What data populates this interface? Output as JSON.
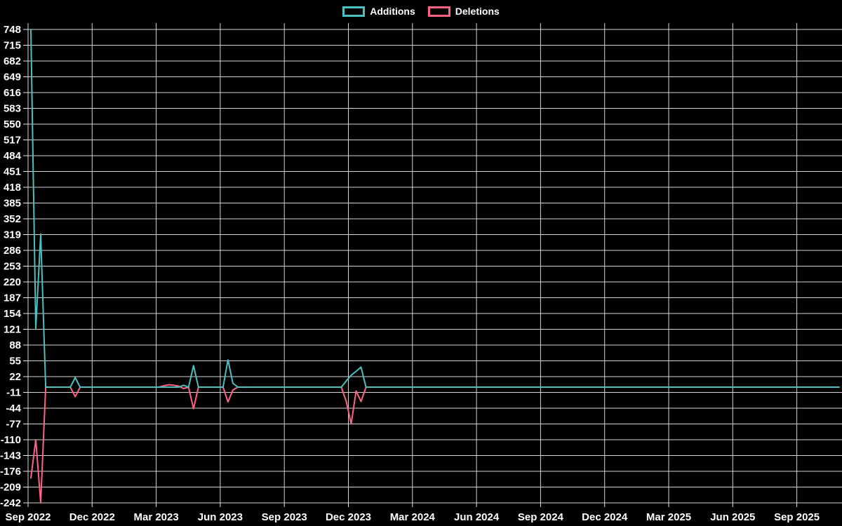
{
  "legend": {
    "items": [
      {
        "label": "Additions",
        "color": "#4bc0c0"
      },
      {
        "label": "Deletions",
        "color": "#ff6384"
      }
    ]
  },
  "colors": {
    "background": "#000000",
    "grid": "#e8e8e8",
    "text": "#ffffff",
    "additions": "#4bc0c0",
    "deletions": "#ff6384"
  },
  "chart_data": {
    "type": "line",
    "title": "",
    "xlabel": "",
    "ylabel": "",
    "x_unit": "week",
    "weeks": 165,
    "grid": true,
    "legend_position": "top-center",
    "y_min": -242,
    "y_max": 748,
    "y_tick_step": 33,
    "y_ticks": [
      748,
      715,
      682,
      649,
      616,
      583,
      550,
      517,
      484,
      451,
      418,
      385,
      352,
      319,
      286,
      253,
      220,
      187,
      154,
      121,
      88,
      55,
      22,
      -11,
      -44,
      -77,
      -110,
      -143,
      -176,
      -209,
      -242
    ],
    "x_tick_labels": [
      "Sep 2022",
      "Dec 2022",
      "Mar 2023",
      "Jun 2023",
      "Sep 2023",
      "Dec 2023",
      "Mar 2024",
      "Jun 2024",
      "Sep 2024",
      "Dec 2024",
      "Mar 2025",
      "Jun 2025",
      "Sep 2025"
    ],
    "series": [
      {
        "name": "Additions",
        "color": "#4bc0c0",
        "default": 0,
        "points": {
          "0": 748,
          "1": 123,
          "2": 320,
          "9": 20,
          "31": 4,
          "33": 45,
          "40": 57,
          "41": 8,
          "64": 13,
          "65": 25,
          "66": 33,
          "67": 42
        }
      },
      {
        "name": "Deletions",
        "color": "#ff6384",
        "default": 0,
        "points": {
          "0": -190,
          "1": -110,
          "2": -242,
          "9": -20,
          "27": 3,
          "28": 5,
          "29": 4,
          "30": 2,
          "31": -3,
          "33": -45,
          "40": -31,
          "41": -6,
          "64": -30,
          "65": -77,
          "66": -8,
          "67": -30
        }
      }
    ]
  }
}
